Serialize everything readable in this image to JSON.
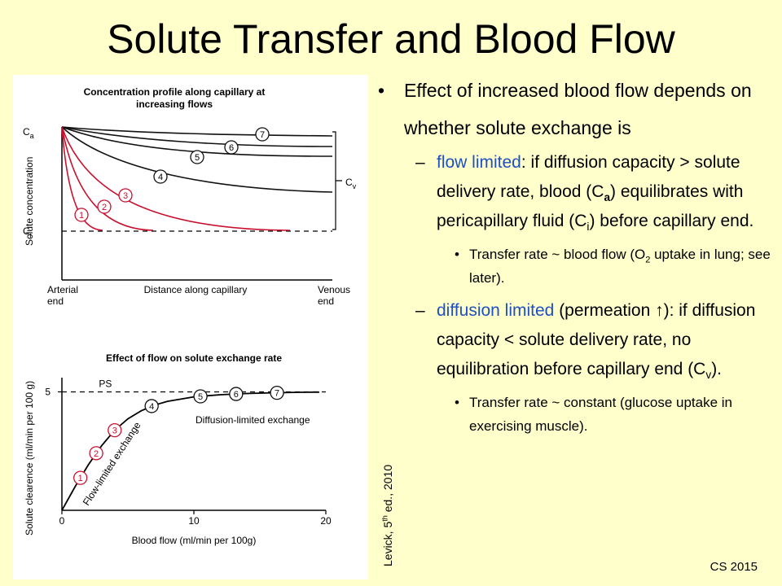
{
  "title": "Solute Transfer and Blood Flow",
  "bullets": {
    "main": "Effect of increased blood flow depends on whether solute exchange is",
    "flow_limited": {
      "term": "flow limited",
      "text1": ": if diffusion capacity > solute delivery rate, blood (C",
      "sub1": "a",
      "text2": ") equilibrates with pericapillary fluid (C",
      "sub2": "i",
      "text3": ") before capillary end.",
      "sub_bullet": {
        "text1": "Transfer rate ~ blood flow (O",
        "sub": "2",
        "text2": " uptake in lung; see later)."
      }
    },
    "diffusion_limited": {
      "term": "diffusion limited",
      "text1": " (permeation ↑): if diffusion capacity < solute delivery rate, no equilibration before capillary end (C",
      "sub": "v",
      "text2": ").",
      "sub_bullet": "Transfer rate ~ constant (glucose uptake in exercising muscle)."
    }
  },
  "credit": {
    "text1": "Levick, 5",
    "sup": "th",
    "text2": " ed., 2010"
  },
  "footer": "CS 2015",
  "figure_top": {
    "title_line1": "Concentration profile along capillary at",
    "title_line2": "increasing flows",
    "ylabel": "Solute concentration",
    "ca_label": "C",
    "ca_sub": "a",
    "ci_label": "C",
    "ci_sub": "i",
    "cv_label": "C",
    "cv_sub": "v",
    "x_left_line1": "Arterial",
    "x_left_line2": "end",
    "xlabel": "Distance along capillary",
    "x_right_line1": "Venous",
    "x_right_line2": "end",
    "curve_labels": [
      "1",
      "2",
      "3",
      "4",
      "5",
      "6",
      "7"
    ],
    "red_color": "#c8102e",
    "black_color": "#111111"
  },
  "figure_bottom": {
    "title": "Effect of flow on solute exchange rate",
    "ylabel": "Solute clearence (ml/min per 100 g)",
    "xlabel": "Blood flow (ml/min per 100g)",
    "ps_label": "PS",
    "flow_limited_label": "Flow-limited exchange",
    "diffusion_limited_label": "Diffusion-limited exchange",
    "y_ticks": [
      "5"
    ],
    "x_ticks": [
      "0",
      "10",
      "20"
    ]
  },
  "chart_data": {
    "type": "line",
    "title": "Effect of flow on solute exchange rate",
    "xlabel": "Blood flow (ml/min per 100g)",
    "ylabel": "Solute clearence (ml/min per 100 g)",
    "xlim": [
      0,
      20
    ],
    "ylim": [
      0,
      5.6
    ],
    "x_ticks": [
      0,
      10,
      20
    ],
    "y_ticks": [
      5
    ],
    "ps_value": 5,
    "curve": {
      "x": [
        0,
        1,
        2,
        3,
        4,
        5,
        6,
        7,
        8,
        10,
        12,
        14,
        16,
        18,
        19.5
      ],
      "y": [
        0,
        1.0,
        1.92,
        2.72,
        3.38,
        3.86,
        4.2,
        4.44,
        4.6,
        4.79,
        4.88,
        4.93,
        4.96,
        4.98,
        4.99
      ]
    },
    "points": [
      {
        "label": "1",
        "x": 1.4,
        "y": 1.37,
        "color": "#c8102e"
      },
      {
        "label": "2",
        "x": 2.6,
        "y": 2.41,
        "color": "#c8102e"
      },
      {
        "label": "3",
        "x": 4.0,
        "y": 3.38,
        "color": "#c8102e"
      },
      {
        "label": "4",
        "x": 6.8,
        "y": 4.4,
        "color": "#111111"
      },
      {
        "label": "5",
        "x": 10.5,
        "y": 4.81,
        "color": "#111111"
      },
      {
        "label": "6",
        "x": 13.2,
        "y": 4.91,
        "color": "#111111"
      },
      {
        "label": "7",
        "x": 16.3,
        "y": 4.96,
        "color": "#111111"
      }
    ],
    "grid": false
  }
}
